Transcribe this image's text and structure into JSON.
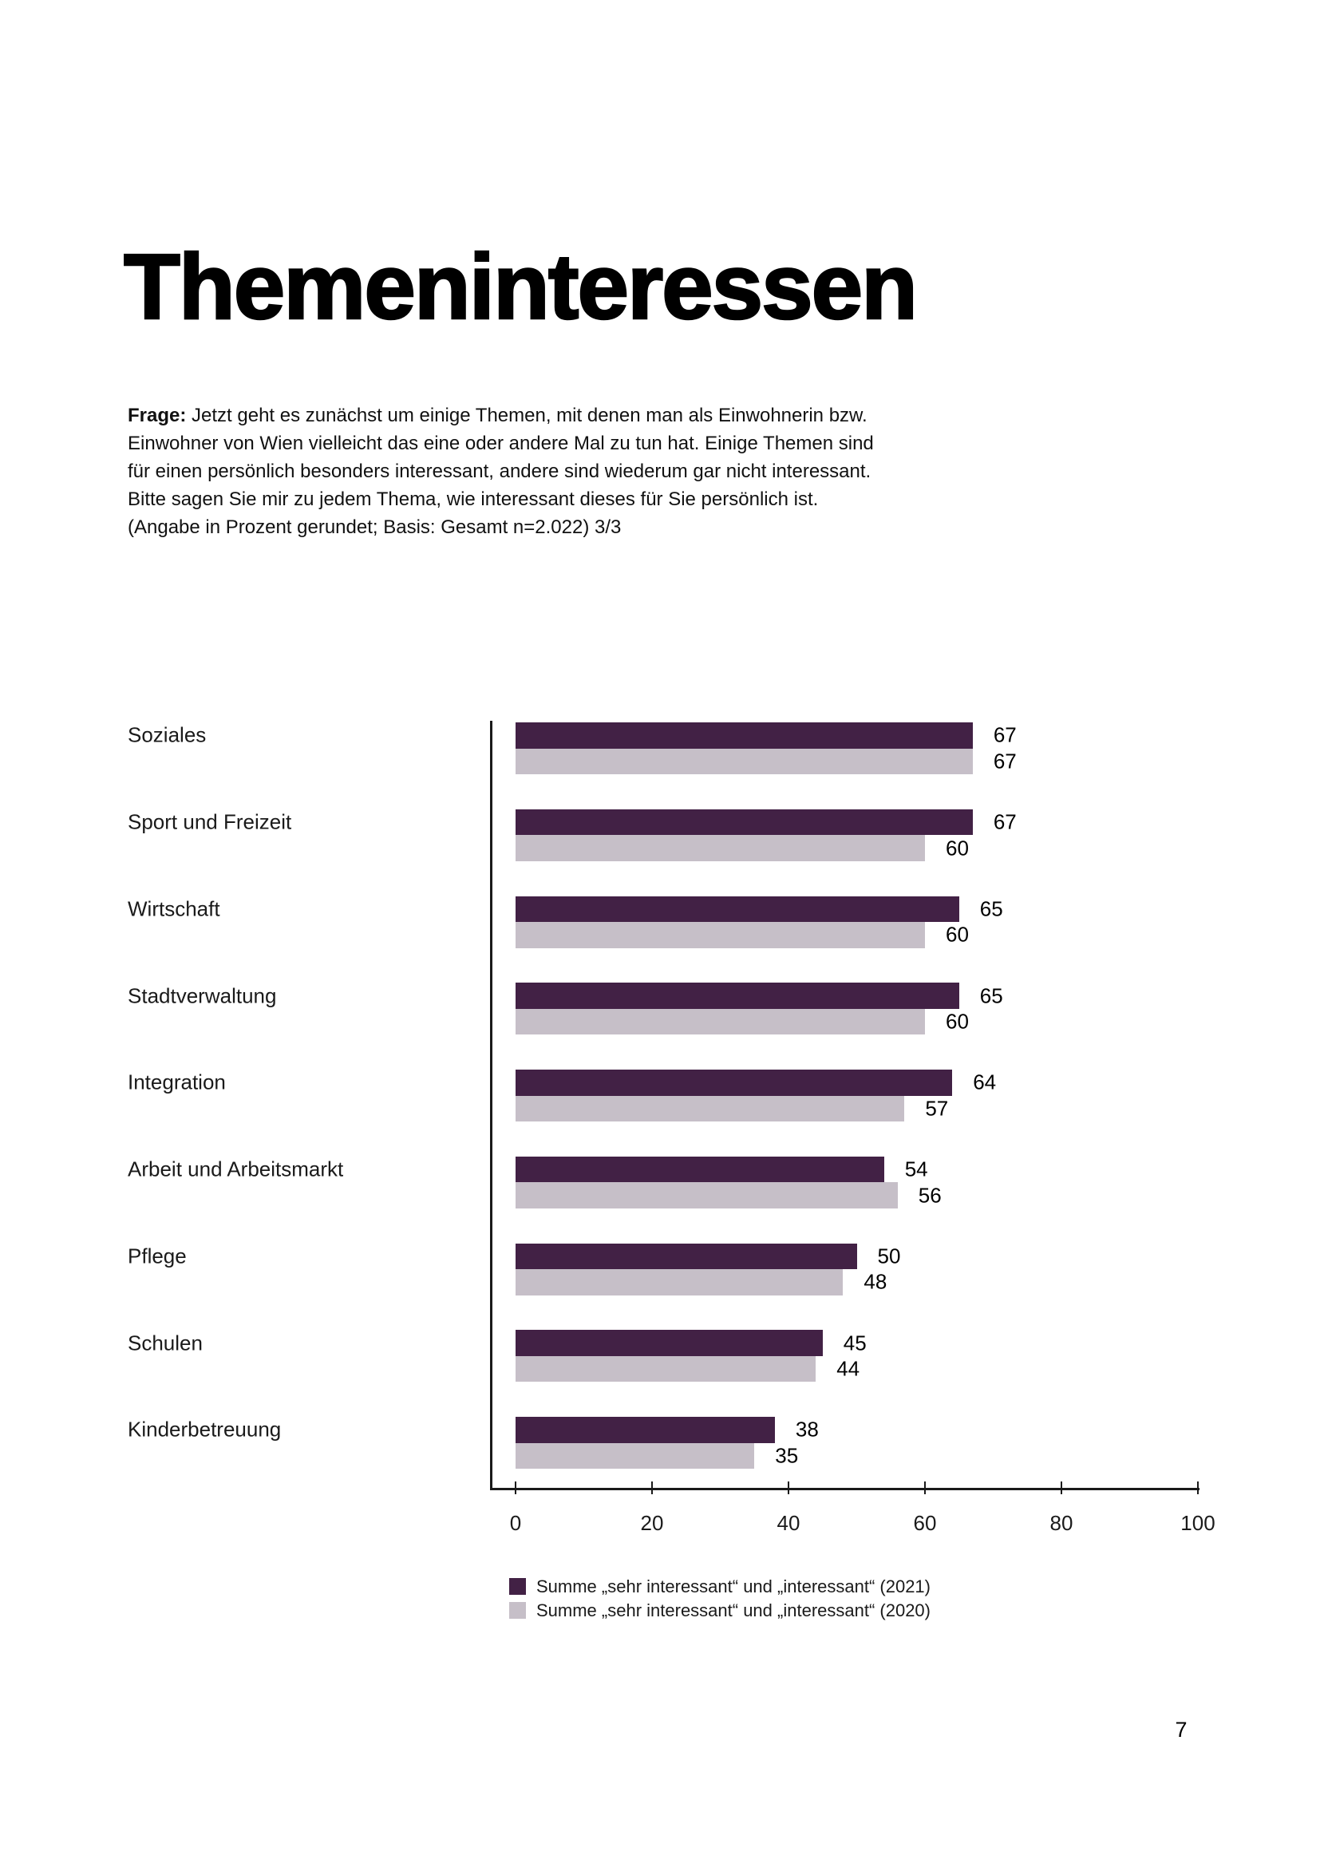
{
  "page": {
    "title": "Themeninteressen",
    "page_number": "7"
  },
  "question": {
    "label": "Frage:",
    "text": "Jetzt geht es zunächst um einige Themen, mit denen man als Einwohnerin bzw.\nEinwohner von Wien vielleicht das eine oder andere Mal zu tun hat. Einige Themen sind\nfür einen persönlich besonders interessant, andere sind wiederum gar nicht interessant.\nBitte sagen Sie mir zu jedem Thema, wie interessant dieses für Sie persönlich ist.\n(Angabe in Prozent gerundet; Basis: Gesamt n=2.022) 3/3"
  },
  "chart_data": {
    "type": "bar",
    "orientation": "horizontal",
    "title": "",
    "categories": [
      "Soziales",
      "Sport und Freizeit",
      "Wirtschaft",
      "Stadtverwaltung",
      "Integration",
      "Arbeit und Arbeitsmarkt",
      "Pflege",
      "Schulen",
      "Kinderbetreuung"
    ],
    "series": [
      {
        "name": "Summe „sehr interessant“ und „interessant“ (2021)",
        "year": "2021",
        "color": "#422145",
        "values": [
          67,
          67,
          65,
          65,
          64,
          54,
          50,
          45,
          38
        ]
      },
      {
        "name": "Summe „sehr interessant“ und „interessant“ (2020)",
        "year": "2020",
        "color": "#c6bfc8",
        "values": [
          67,
          60,
          60,
          60,
          57,
          56,
          48,
          44,
          35
        ]
      }
    ],
    "xlim": [
      0,
      100
    ],
    "xticks": [
      0,
      20,
      40,
      60,
      80,
      100
    ],
    "value_labels": true,
    "grid": false,
    "legend_position": "bottom"
  }
}
